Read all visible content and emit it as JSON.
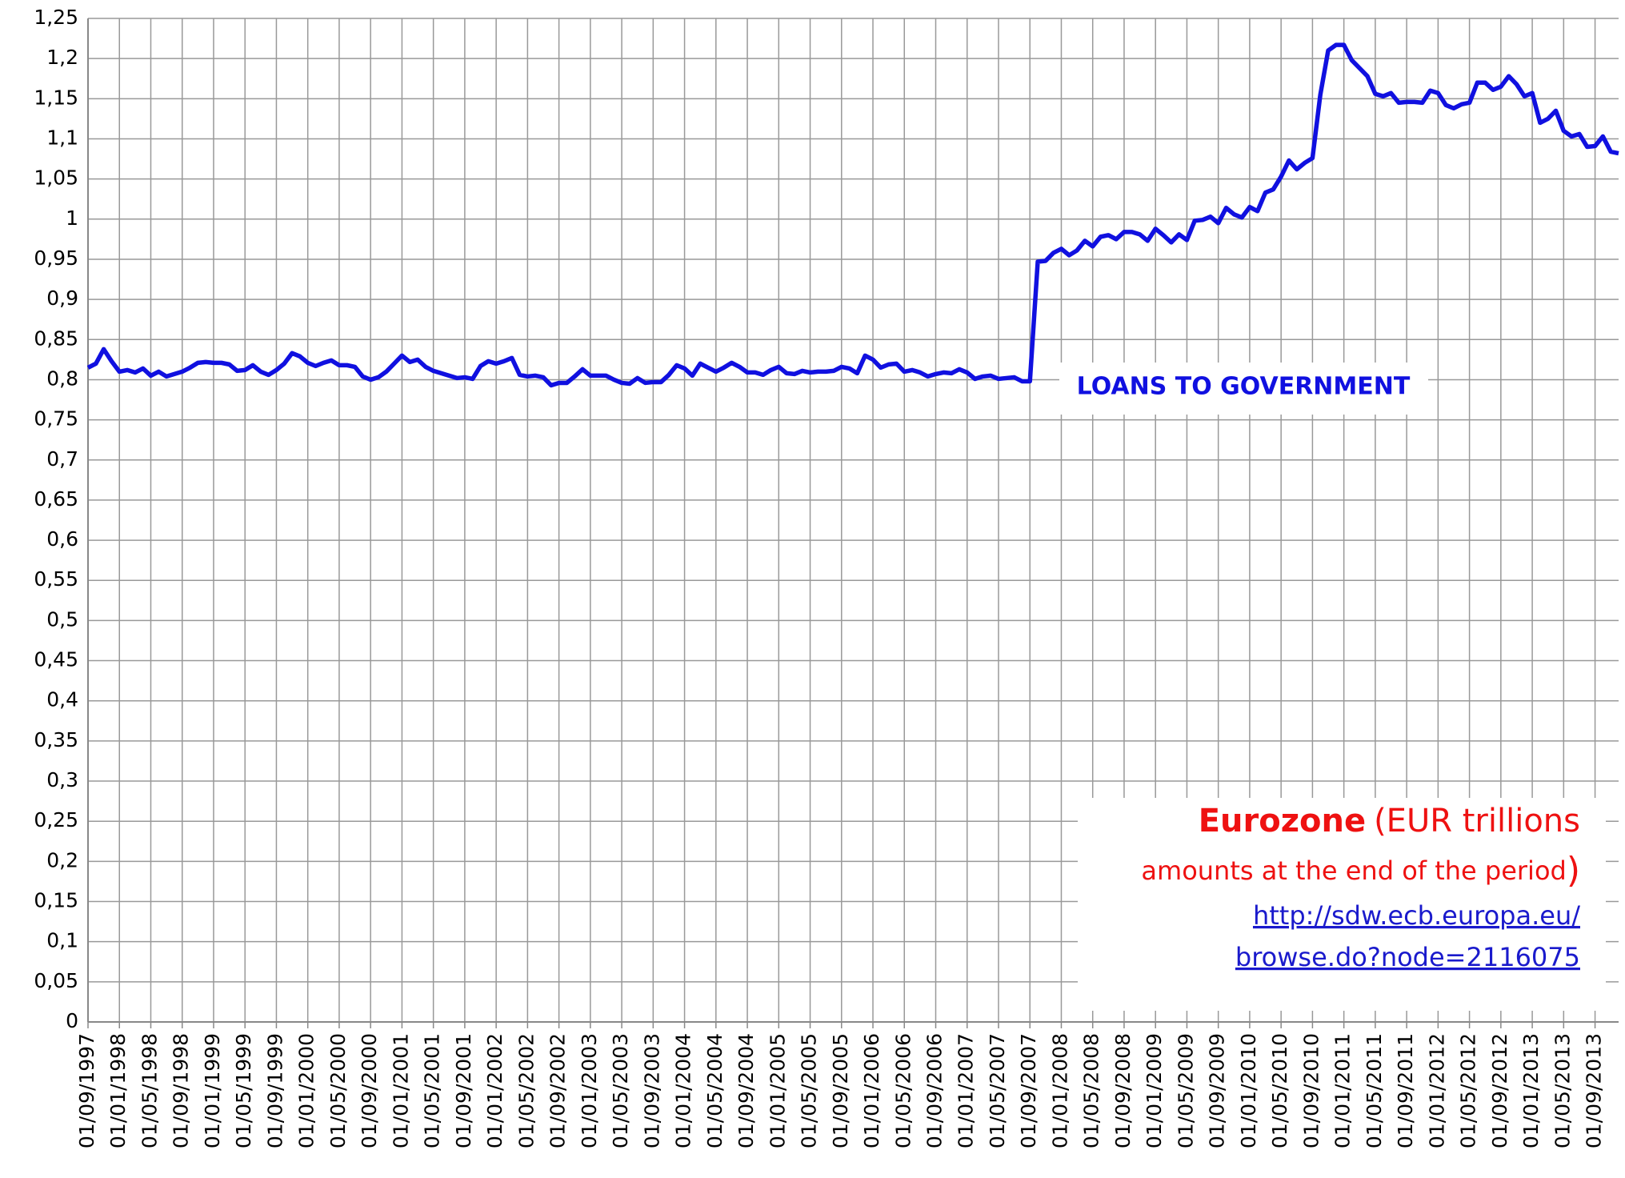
{
  "chart_data": {
    "type": "line",
    "categories": [
      "01/09/1997",
      null,
      null,
      null,
      "01/01/1998",
      null,
      null,
      null,
      "01/05/1998",
      null,
      null,
      null,
      "01/09/1998",
      null,
      null,
      null,
      "01/01/1999",
      null,
      null,
      null,
      "01/05/1999",
      null,
      null,
      null,
      "01/09/1999",
      null,
      null,
      null,
      "01/01/2000",
      null,
      null,
      null,
      "01/05/2000",
      null,
      null,
      null,
      "01/09/2000",
      null,
      null,
      null,
      "01/01/2001",
      null,
      null,
      null,
      "01/05/2001",
      null,
      null,
      null,
      "01/09/2001",
      null,
      null,
      null,
      "01/01/2002",
      null,
      null,
      null,
      "01/05/2002",
      null,
      null,
      null,
      "01/09/2002",
      null,
      null,
      null,
      "01/01/2003",
      null,
      null,
      null,
      "01/05/2003",
      null,
      null,
      null,
      "01/09/2003",
      null,
      null,
      null,
      "01/01/2004",
      null,
      null,
      null,
      "01/05/2004",
      null,
      null,
      null,
      "01/09/2004",
      null,
      null,
      null,
      "01/01/2005",
      null,
      null,
      null,
      "01/05/2005",
      null,
      null,
      null,
      "01/09/2005",
      null,
      null,
      null,
      "01/01/2006",
      null,
      null,
      null,
      "01/05/2006",
      null,
      null,
      null,
      "01/09/2006",
      null,
      null,
      null,
      "01/01/2007",
      null,
      null,
      null,
      "01/05/2007",
      null,
      null,
      null,
      "01/09/2007",
      null,
      null,
      null,
      "01/01/2008",
      null,
      null,
      null,
      "01/05/2008",
      null,
      null,
      null,
      "01/09/2008",
      null,
      null,
      null,
      "01/01/2009",
      null,
      null,
      null,
      "01/05/2009",
      null,
      null,
      null,
      "01/09/2009",
      null,
      null,
      null,
      "01/01/2010",
      null,
      null,
      null,
      "01/05/2010",
      null,
      null,
      null,
      "01/09/2010",
      null,
      null,
      null,
      "01/01/2011",
      null,
      null,
      null,
      "01/05/2011",
      null,
      null,
      null,
      "01/09/2011",
      null,
      null,
      null,
      "01/01/2012",
      null,
      null,
      null,
      "01/05/2012",
      null,
      null,
      null,
      "01/09/2012",
      null,
      null,
      null,
      "01/01/2013",
      null,
      null,
      null,
      "01/05/2013",
      null,
      null,
      null,
      "01/09/2013",
      null,
      null,
      null
    ],
    "series": [
      {
        "name": "LOANS TO GOVERNMENT",
        "color": "#1010e0",
        "values": [
          0.815,
          0.82,
          0.838,
          0.823,
          0.81,
          0.812,
          0.809,
          0.814,
          0.805,
          0.81,
          0.804,
          0.807,
          0.81,
          0.815,
          0.821,
          0.822,
          0.821,
          0.821,
          0.819,
          0.811,
          0.812,
          0.818,
          0.81,
          0.806,
          0.812,
          0.82,
          0.833,
          0.829,
          0.821,
          0.817,
          0.821,
          0.824,
          0.818,
          0.818,
          0.816,
          0.804,
          0.8,
          0.803,
          0.81,
          0.82,
          0.83,
          0.822,
          0.825,
          0.816,
          0.811,
          0.808,
          0.805,
          0.802,
          0.803,
          0.801,
          0.817,
          0.823,
          0.82,
          0.823,
          0.827,
          0.806,
          0.804,
          0.805,
          0.803,
          0.793,
          0.796,
          0.796,
          0.804,
          0.813,
          0.805,
          0.805,
          0.805,
          0.8,
          0.796,
          0.795,
          0.802,
          0.796,
          0.797,
          0.797,
          0.806,
          0.818,
          0.814,
          0.805,
          0.82,
          0.815,
          0.81,
          0.815,
          0.821,
          0.816,
          0.809,
          0.809,
          0.806,
          0.812,
          0.816,
          0.808,
          0.807,
          0.811,
          0.809,
          0.81,
          0.81,
          0.811,
          0.816,
          0.814,
          0.808,
          0.83,
          0.825,
          0.815,
          0.819,
          0.82,
          0.81,
          0.812,
          0.809,
          0.804,
          0.807,
          0.809,
          0.808,
          0.813,
          0.809,
          0.801,
          0.804,
          0.805,
          0.801,
          0.802,
          0.803,
          0.798,
          0.798,
          0.947,
          0.948,
          0.958,
          0.963,
          0.955,
          0.961,
          0.973,
          0.966,
          0.978,
          0.98,
          0.975,
          0.984,
          0.984,
          0.981,
          0.973,
          0.988,
          0.98,
          0.971,
          0.981,
          0.974,
          0.998,
          0.999,
          1.003,
          0.995,
          1.014,
          1.006,
          1.002,
          1.015,
          1.01,
          1.033,
          1.037,
          1.053,
          1.073,
          1.062,
          1.07,
          1.076,
          1.155,
          1.21,
          1.217,
          1.217,
          1.198,
          1.188,
          1.178,
          1.156,
          1.153,
          1.157,
          1.145,
          1.146,
          1.146,
          1.145,
          1.16,
          1.157,
          1.142,
          1.138,
          1.143,
          1.145,
          1.17,
          1.17,
          1.161,
          1.165,
          1.178,
          1.168,
          1.153,
          1.157,
          1.12,
          1.125,
          1.135,
          1.11,
          1.103,
          1.106,
          1.09,
          1.091,
          1.103,
          1.084,
          1.082
        ]
      }
    ],
    "ylim": [
      0,
      1.25
    ],
    "yticks": [
      0,
      {
        "value": 0.05,
        "label": "0,05"
      },
      {
        "value": 0.1,
        "label": "0,1"
      },
      {
        "value": 0.15,
        "label": "0,15"
      },
      {
        "value": 0.2,
        "label": "0,2"
      },
      {
        "value": 0.25,
        "label": "0,25"
      },
      {
        "value": 0.3,
        "label": "0,3"
      },
      {
        "value": 0.35,
        "label": "0,35"
      },
      {
        "value": 0.4,
        "label": "0,4"
      },
      {
        "value": 0.45,
        "label": "0,45"
      },
      {
        "value": 0.5,
        "label": "0,5"
      },
      {
        "value": 0.55,
        "label": "0,55"
      },
      {
        "value": 0.6,
        "label": "0,6"
      },
      {
        "value": 0.65,
        "label": "0,65"
      },
      {
        "value": 0.7,
        "label": "0,7"
      },
      {
        "value": 0.75,
        "label": "0,75"
      },
      {
        "value": 0.8,
        "label": "0,8"
      },
      {
        "value": 0.85,
        "label": "0,85"
      },
      {
        "value": 0.9,
        "label": "0,9"
      },
      {
        "value": 0.95,
        "label": "0,95"
      },
      1,
      {
        "value": 1.05,
        "label": "1,05"
      },
      {
        "value": 1.1,
        "label": "1,1"
      },
      {
        "value": 1.15,
        "label": "1,15"
      },
      {
        "value": 1.2,
        "label": "1,2"
      },
      {
        "value": 1.25,
        "label": "1,25"
      }
    ],
    "grid": true,
    "note": {
      "title": "Eurozone",
      "line1": "(EUR trillions",
      "line2": "amounts at the end of the period",
      "close": ")",
      "link": [
        "http://sdw.ecb.europa.eu/",
        "browse.do?node=2116075"
      ]
    }
  }
}
